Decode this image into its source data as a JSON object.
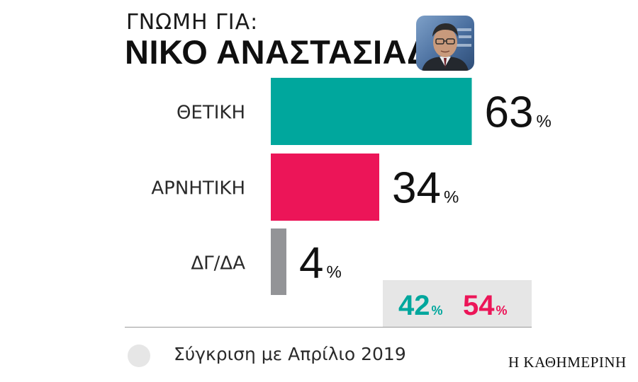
{
  "header": {
    "subtitle": "ΓΝΩΜΗ ΓΙΑ:",
    "title": "ΝΙΚΟ ΑΝΑΣΤΑΣΙΑΔΗ"
  },
  "chart_data": {
    "type": "bar",
    "orientation": "horizontal",
    "categories": [
      "ΘΕΤΙΚΗ",
      "ΑΡΝΗΤΙΚΗ",
      "ΔΓ/ΔΑ"
    ],
    "values": [
      63,
      34,
      4
    ],
    "value_labels": [
      "63",
      "34",
      "4"
    ],
    "unit": "%",
    "colors": [
      "#00a79d",
      "#ec1558",
      "#939497"
    ],
    "xlim": [
      0,
      100
    ],
    "comparison": {
      "values": [
        42,
        54
      ],
      "labels": [
        "42",
        "54"
      ],
      "colors": [
        "#00a79d",
        "#ec1558"
      ],
      "background": "#e6e6e6"
    }
  },
  "legend": {
    "text": "Σύγκριση με Απρίλιο 2019",
    "swatch_color": "#e6e6e6"
  },
  "brand": "Η ΚΑΘΗΜΕΡΙΝΗ",
  "portrait": {
    "icon": "politician-portrait"
  }
}
